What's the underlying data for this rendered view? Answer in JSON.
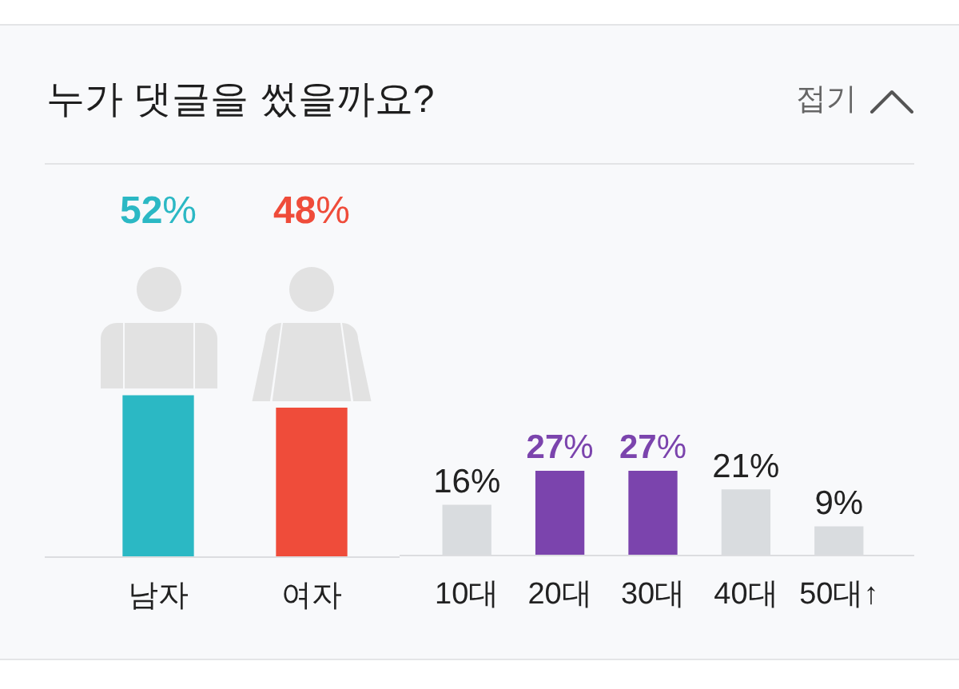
{
  "chart_data": [
    {
      "type": "bar",
      "title": "누가 댓글을 썼을까요?",
      "annotations": [
        "접기"
      ],
      "categories": [
        "남자",
        "여자"
      ],
      "values": [
        52,
        48
      ],
      "colors": [
        "#2bb8c4",
        "#ef4c3a"
      ],
      "value_labels": [
        "52%",
        "48%"
      ],
      "tick_labels": "x"
    },
    {
      "type": "bar",
      "categories": [
        "10대",
        "20대",
        "30대",
        "40대",
        "50대↑"
      ],
      "values": [
        16,
        27,
        27,
        21,
        9
      ],
      "colors": [
        "#d9dcdf",
        "#7b44ad",
        "#7b44ad",
        "#d9dcdf",
        "#d9dcdf"
      ],
      "value_labels": [
        "16%",
        "27%",
        "27%",
        "21%",
        "9%"
      ],
      "tick_labels": "x"
    }
  ]
}
